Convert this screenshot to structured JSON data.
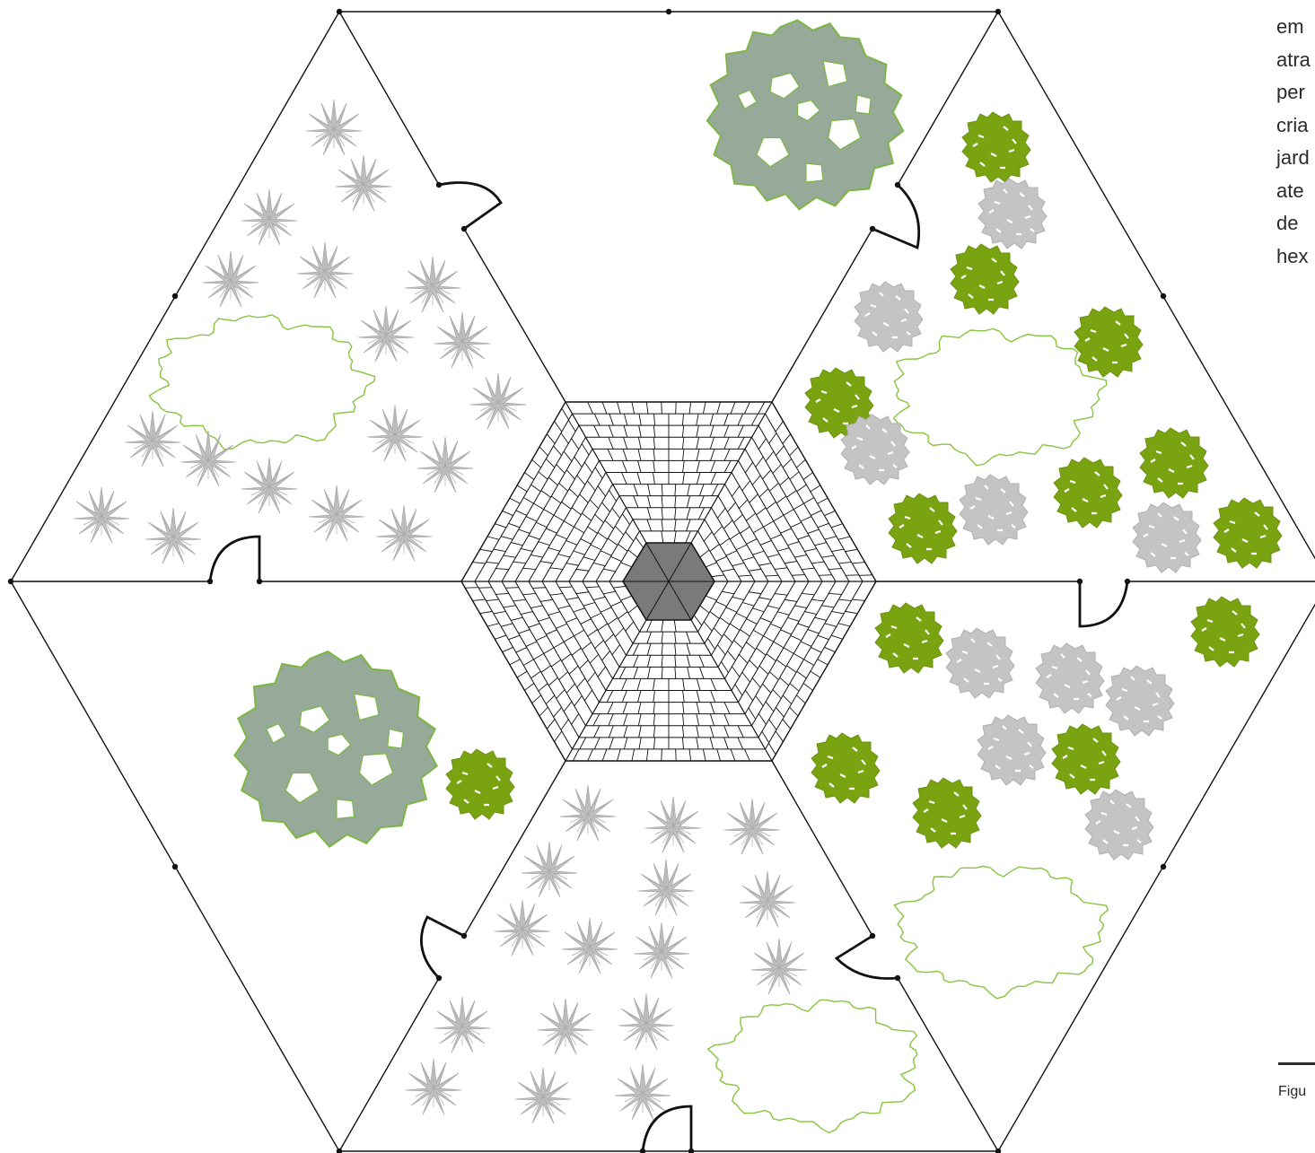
{
  "side_text": {
    "lines": [
      "em",
      "atra",
      "per",
      "cria",
      "jard",
      "ate",
      "de",
      "hex"
    ]
  },
  "caption": {
    "text": "Figu"
  },
  "colors": {
    "line": "#111111",
    "paver": "#111111",
    "center_hex": "#7a7a7a",
    "shrub_green": "#7aa312",
    "shrub_grey": "#c4c4c4",
    "fern_grey": "#b8b8b8",
    "tree_canopy": "#97aa9a",
    "tree_outline": "#7ab640",
    "bed_outline": "#88c440"
  },
  "icons": [
    "fern-icon",
    "green-shrub-icon",
    "grey-shrub-icon",
    "tree-canopy-icon",
    "planting-bed-outline",
    "door-swing-icon"
  ]
}
